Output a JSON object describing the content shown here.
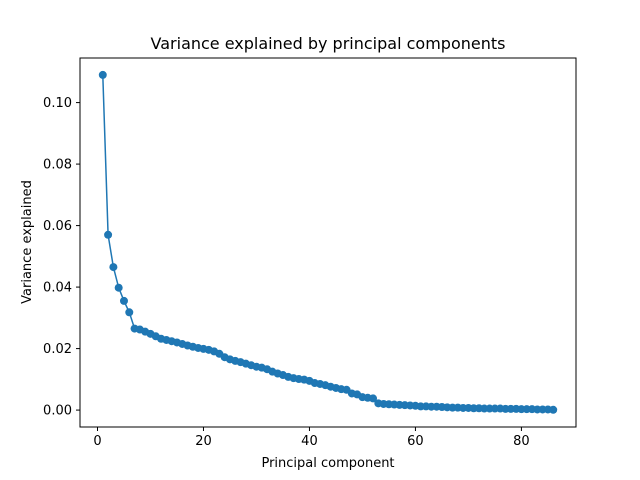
{
  "chart_data": {
    "type": "line",
    "title": "Variance explained by principal components",
    "xlabel": "Principal component",
    "ylabel": "Variance explained",
    "xlim": [
      -3.3,
      90.3
    ],
    "ylim": [
      -0.0055,
      0.1145
    ],
    "x_ticks": [
      {
        "value": 0,
        "label": "0"
      },
      {
        "value": 20,
        "label": "20"
      },
      {
        "value": 40,
        "label": "40"
      },
      {
        "value": 60,
        "label": "60"
      },
      {
        "value": 80,
        "label": "80"
      }
    ],
    "y_ticks": [
      {
        "value": 0.0,
        "label": "0.00"
      },
      {
        "value": 0.02,
        "label": "0.02"
      },
      {
        "value": 0.04,
        "label": "0.04"
      },
      {
        "value": 0.06,
        "label": "0.06"
      },
      {
        "value": 0.08,
        "label": "0.08"
      },
      {
        "value": 0.1,
        "label": "0.10"
      }
    ],
    "grid": false,
    "series": [
      {
        "color": "#1f77b4",
        "marker": "circle",
        "x": [
          1,
          2,
          3,
          4,
          5,
          6,
          7,
          8,
          9,
          10,
          11,
          12,
          13,
          14,
          15,
          16,
          17,
          18,
          19,
          20,
          21,
          22,
          23,
          24,
          25,
          26,
          27,
          28,
          29,
          30,
          31,
          32,
          33,
          34,
          35,
          36,
          37,
          38,
          39,
          40,
          41,
          42,
          43,
          44,
          45,
          46,
          47,
          48,
          49,
          50,
          51,
          52,
          53,
          54,
          55,
          56,
          57,
          58,
          59,
          60,
          61,
          62,
          63,
          64,
          65,
          66,
          67,
          68,
          69,
          70,
          71,
          72,
          73,
          74,
          75,
          76,
          77,
          78,
          79,
          80,
          81,
          82,
          83,
          84,
          85,
          86
        ],
        "y": [
          0.109,
          0.057,
          0.0465,
          0.0398,
          0.0355,
          0.0318,
          0.0265,
          0.0262,
          0.0255,
          0.0248,
          0.024,
          0.0232,
          0.0228,
          0.0224,
          0.022,
          0.0215,
          0.021,
          0.0206,
          0.0202,
          0.0199,
          0.0196,
          0.0191,
          0.0183,
          0.0172,
          0.0165,
          0.016,
          0.0156,
          0.0151,
          0.0146,
          0.0141,
          0.0138,
          0.0133,
          0.0125,
          0.0119,
          0.0114,
          0.0108,
          0.0104,
          0.0101,
          0.0099,
          0.0095,
          0.0088,
          0.0085,
          0.0081,
          0.0076,
          0.0072,
          0.0068,
          0.0066,
          0.0054,
          0.0051,
          0.0042,
          0.004,
          0.0038,
          0.0022,
          0.002,
          0.0019,
          0.0018,
          0.0017,
          0.0016,
          0.0015,
          0.0014,
          0.0012,
          0.0012,
          0.0011,
          0.0011,
          0.001,
          0.0009,
          0.0008,
          0.0008,
          0.0007,
          0.0007,
          0.0006,
          0.0006,
          0.0005,
          0.0005,
          0.0005,
          0.0005,
          0.0004,
          0.0004,
          0.0004,
          0.0003,
          0.0003,
          0.0003,
          0.0002,
          0.0002,
          0.0002,
          0.0001
        ]
      }
    ]
  }
}
